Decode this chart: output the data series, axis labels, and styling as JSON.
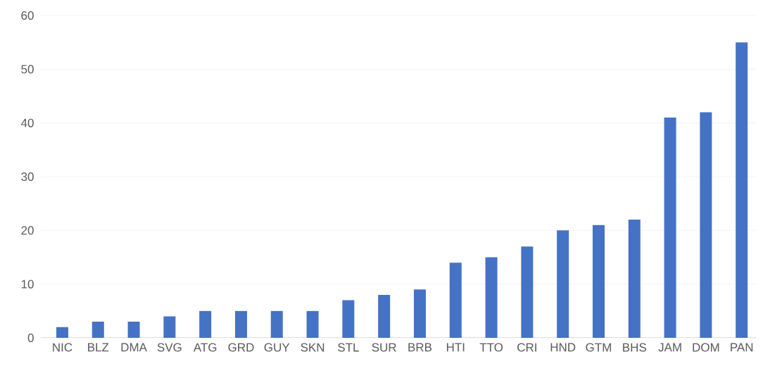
{
  "chart_data": {
    "type": "bar",
    "categories": [
      "NIC",
      "BLZ",
      "DMA",
      "SVG",
      "ATG",
      "GRD",
      "GUY",
      "SKN",
      "STL",
      "SUR",
      "BRB",
      "HTI",
      "TTO",
      "CRI",
      "HND",
      "GTM",
      "BHS",
      "JAM",
      "DOM",
      "PAN"
    ],
    "values": [
      2,
      3,
      3,
      4,
      5,
      5,
      5,
      5,
      7,
      8,
      9,
      14,
      15,
      17,
      20,
      21,
      22,
      41,
      42,
      55
    ],
    "color": "#4472c4",
    "ylim": [
      0,
      60
    ],
    "yticks": [
      0,
      10,
      20,
      30,
      40,
      50,
      60
    ],
    "grid": "y"
  }
}
